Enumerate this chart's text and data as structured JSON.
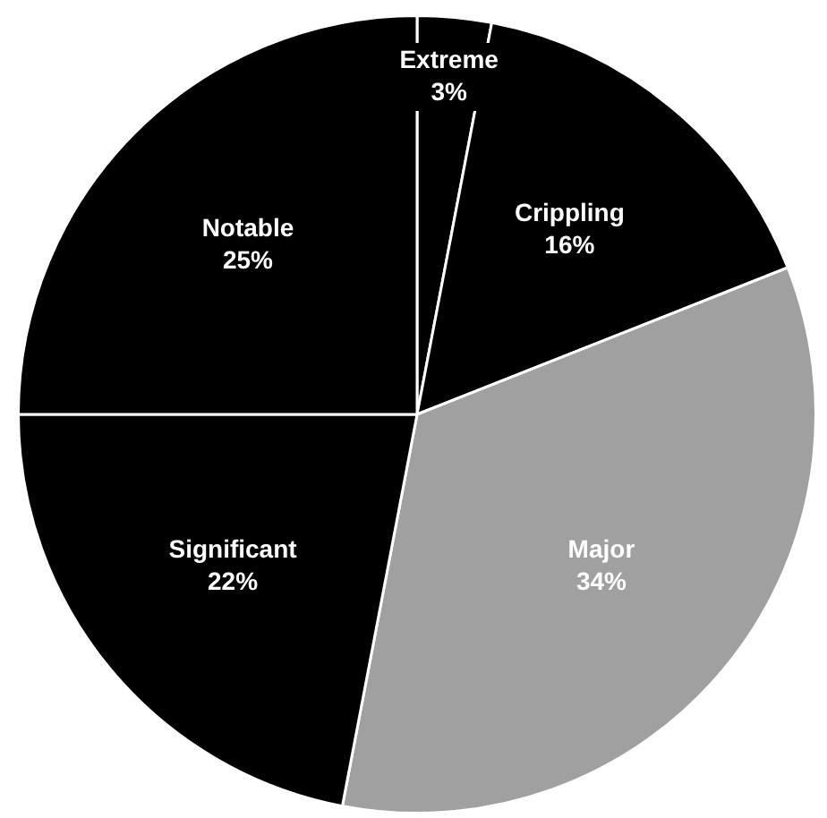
{
  "chart_data": {
    "type": "pie",
    "categories": [
      "Extreme",
      "Crippling",
      "Major",
      "Significant",
      "Notable"
    ],
    "values": [
      3,
      16,
      34,
      22,
      25
    ],
    "colors": [
      "#000000",
      "#000000",
      "#a0a0a0",
      "#000000",
      "#000000"
    ],
    "value_labels": [
      "3%",
      "16%",
      "34%",
      "22%",
      "25%"
    ],
    "legend": false
  }
}
